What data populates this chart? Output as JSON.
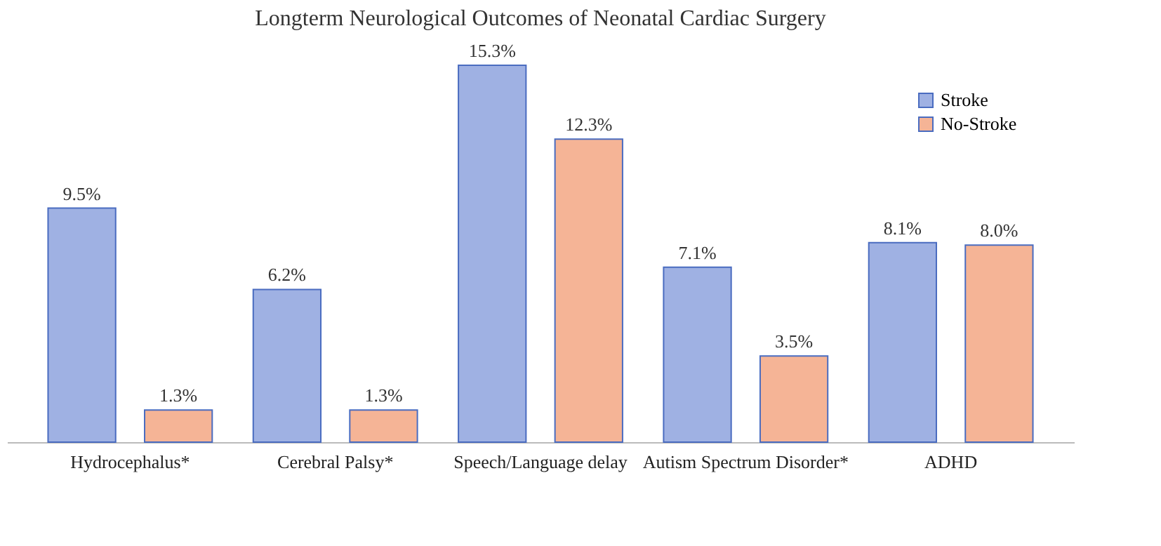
{
  "chart_data": {
    "type": "bar",
    "title": "Longterm Neurological Outcomes of Neonatal Cardiac Surgery",
    "categories": [
      "Hydrocephalus*",
      "Cerebral Palsy*",
      "Speech/Language delay",
      "Autism Spectrum Disorder*",
      "ADHD"
    ],
    "series": [
      {
        "name": "Stroke",
        "color": "#9fb1e3",
        "values": [
          9.5,
          6.2,
          15.3,
          7.1,
          8.1
        ],
        "value_labels": [
          "9.5%",
          "6.2%",
          "15.3%",
          "7.1%",
          "8.1%"
        ]
      },
      {
        "name": "No-Stroke",
        "color": "#f5b496",
        "values": [
          1.3,
          1.3,
          12.3,
          3.5,
          8.0
        ],
        "value_labels": [
          "1.3%",
          "1.3%",
          "12.3%",
          "3.5%",
          "8.0%"
        ]
      }
    ],
    "legend": "top right",
    "grid": false
  }
}
